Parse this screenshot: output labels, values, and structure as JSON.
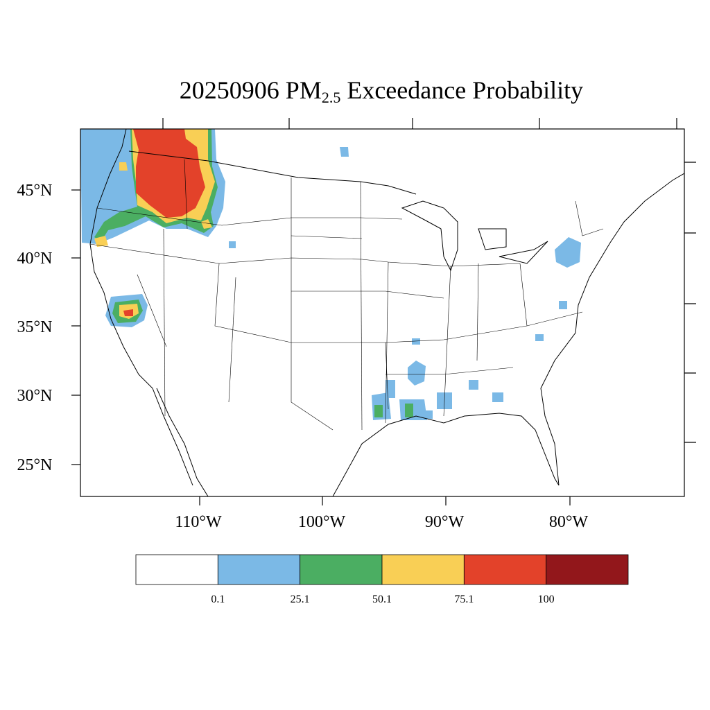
{
  "title": {
    "prefix": "20250906 PM",
    "subscript": "2.5",
    "suffix": " Exceedance Probability"
  },
  "map": {
    "lat_labels": [
      "45°N",
      "40°N",
      "35°N",
      "30°N",
      "25°N"
    ],
    "lon_labels": [
      "110°W",
      "100°W",
      "90°W",
      "80°W"
    ]
  },
  "colorbar": {
    "colors": [
      "#ffffff",
      "#7bb9e6",
      "#4bae62",
      "#f9cf55",
      "#e3422a",
      "#92171b"
    ],
    "labels": [
      "0.1",
      "25.1",
      "50.1",
      "75.1",
      "100"
    ]
  },
  "legend_colors": {
    "lightblue": "#7bb9e6",
    "green": "#4bae62",
    "yellow": "#f9cf55",
    "red": "#e3422a",
    "darkred": "#92171b"
  }
}
